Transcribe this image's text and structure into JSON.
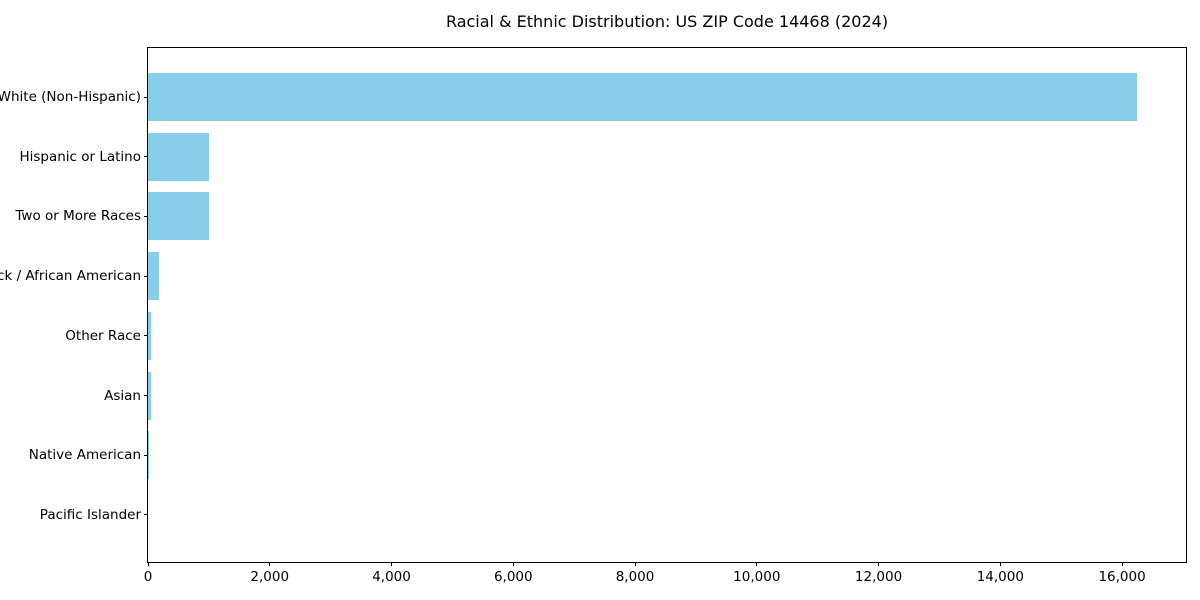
{
  "chart_data": {
    "type": "bar",
    "orientation": "horizontal",
    "title": "Racial & Ethnic Distribution: US ZIP Code 14468 (2024)",
    "categories": [
      "White (Non-Hispanic)",
      "Hispanic or Latino",
      "Two or More Races",
      "Black / African American",
      "Other Race",
      "Asian",
      "Native American",
      "Pacific Islander"
    ],
    "values": [
      16240,
      1000,
      1000,
      180,
      55,
      50,
      10,
      0
    ],
    "bar_color": "#87CEEB",
    "xlabel": "",
    "ylabel": "",
    "xlim": [
      0,
      17050
    ],
    "x_ticks": [
      {
        "value": 0,
        "label": "0"
      },
      {
        "value": 2000,
        "label": "2,000"
      },
      {
        "value": 4000,
        "label": "4,000"
      },
      {
        "value": 6000,
        "label": "6,000"
      },
      {
        "value": 8000,
        "label": "8,000"
      },
      {
        "value": 10000,
        "label": "10,000"
      },
      {
        "value": 12000,
        "label": "12,000"
      },
      {
        "value": 14000,
        "label": "14,000"
      },
      {
        "value": 16000,
        "label": "16,000"
      }
    ],
    "grid": false,
    "legend": null,
    "frame_color": "#000000",
    "text_color": "#000000",
    "background_color": "#ffffff"
  }
}
